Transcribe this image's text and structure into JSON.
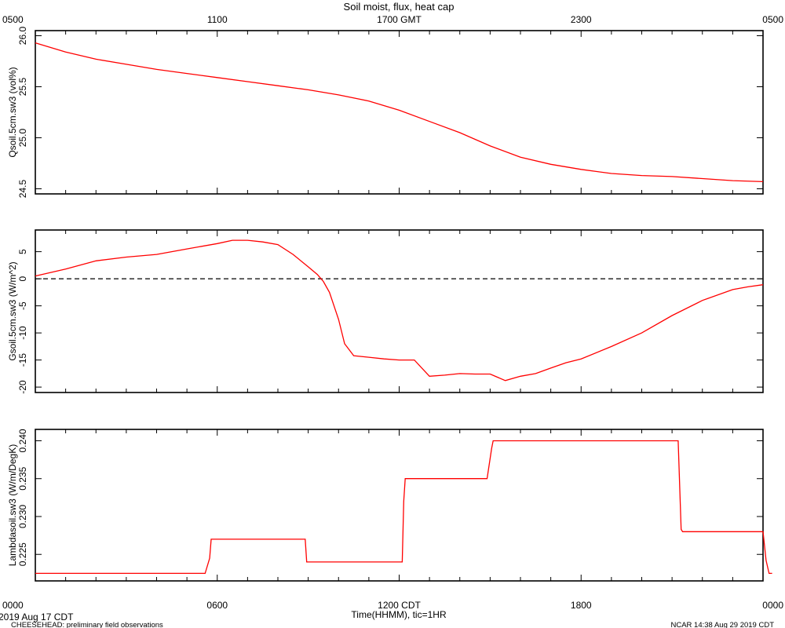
{
  "figure": {
    "title": "Soil moist, flux, heat cap",
    "date_label": "2019 Aug 17 CDT",
    "xlabel": "Time(HHMM), tic=1HR",
    "footer_left": "CHEESEHEAD: preliminary field observations",
    "footer_right": "NCAR 14:38 Aug 29 2019 CDT",
    "top_axis_ticks": [
      "0500",
      "1100",
      "1700 GMT",
      "2300",
      "0500"
    ],
    "bottom_axis_ticks": [
      "0000",
      "0600",
      "1200 CDT",
      "1800",
      "0000"
    ],
    "line_color": "#ff0000"
  },
  "chart_data": [
    {
      "type": "line",
      "ylabel": "Qsoil.5cm.sw3 (vol%)",
      "xlim": [
        0,
        24
      ],
      "ylim": [
        24.45,
        26.05
      ],
      "yticks": [
        24.5,
        25.0,
        25.5,
        26.0
      ],
      "ytick_labels": [
        "24.5",
        "25.0",
        "25.5",
        "26.0"
      ],
      "series": [
        {
          "x": [
            0,
            1,
            2,
            3,
            4,
            5,
            6,
            7,
            8,
            9,
            10,
            11,
            12,
            13,
            14,
            15,
            16,
            17,
            18,
            19,
            20,
            21,
            22,
            23,
            24
          ],
          "y": [
            25.93,
            25.84,
            25.77,
            25.72,
            25.67,
            25.63,
            25.59,
            25.55,
            25.51,
            25.47,
            25.42,
            25.36,
            25.27,
            25.16,
            25.05,
            24.92,
            24.81,
            24.74,
            24.69,
            24.65,
            24.63,
            24.62,
            24.6,
            24.58,
            24.57
          ]
        }
      ]
    },
    {
      "type": "line",
      "ylabel": "Gsoil.5cm.sw3 (W/m^2)",
      "xlim": [
        0,
        24
      ],
      "ylim": [
        -21,
        9
      ],
      "yticks": [
        -20,
        -15,
        -10,
        -5,
        0,
        5
      ],
      "ytick_labels": [
        "-20",
        "-15",
        "-10",
        "-5",
        "0",
        "5"
      ],
      "reference_line": 0,
      "series": [
        {
          "x": [
            0,
            1,
            2,
            3,
            4,
            5,
            6,
            6.5,
            7,
            7.5,
            8,
            8.5,
            9,
            9.3,
            9.5,
            9.7,
            10,
            10.2,
            10.5,
            11,
            11.5,
            12,
            12.5,
            13,
            13.5,
            14,
            14.5,
            15,
            15.5,
            16,
            16.5,
            17,
            17.5,
            18,
            19,
            20,
            21,
            22,
            23,
            23.5,
            24
          ],
          "y": [
            0.5,
            1.8,
            3.3,
            4.0,
            4.5,
            5.5,
            6.5,
            7.1,
            7.1,
            6.8,
            6.3,
            4.5,
            2.2,
            0.8,
            -0.5,
            -2.5,
            -7.5,
            -12.0,
            -14.2,
            -14.5,
            -14.8,
            -15.0,
            -15.0,
            -18.0,
            -17.8,
            -17.5,
            -17.6,
            -17.6,
            -18.8,
            -18.0,
            -17.5,
            -16.5,
            -15.5,
            -14.8,
            -12.5,
            -10.0,
            -6.8,
            -4.0,
            -2.0,
            -1.5,
            -1.1
          ]
        }
      ]
    },
    {
      "type": "line",
      "ylabel": "Lambdasoil.sw3 (W/m/DegK)",
      "xlim": [
        0,
        24
      ],
      "ylim": [
        0.2215,
        0.2415
      ],
      "yticks": [
        0.225,
        0.23,
        0.235,
        0.24
      ],
      "ytick_labels": [
        "0.225",
        "0.230",
        "0.235",
        "0.240"
      ],
      "series": [
        {
          "x": [
            0,
            5.6,
            5.75,
            5.8,
            8.9,
            8.95,
            12.1,
            12.15,
            12.2,
            12.3,
            14.9,
            15.05,
            15.1,
            21.2,
            21.3,
            21.35,
            24.0,
            24.1,
            24.2,
            24.3
          ],
          "y": [
            0.2225,
            0.2225,
            0.2245,
            0.227,
            0.227,
            0.224,
            0.224,
            0.232,
            0.235,
            0.235,
            0.235,
            0.239,
            0.24,
            0.24,
            0.2283,
            0.228,
            0.228,
            0.2242,
            0.2225,
            0.2225
          ]
        }
      ]
    }
  ]
}
